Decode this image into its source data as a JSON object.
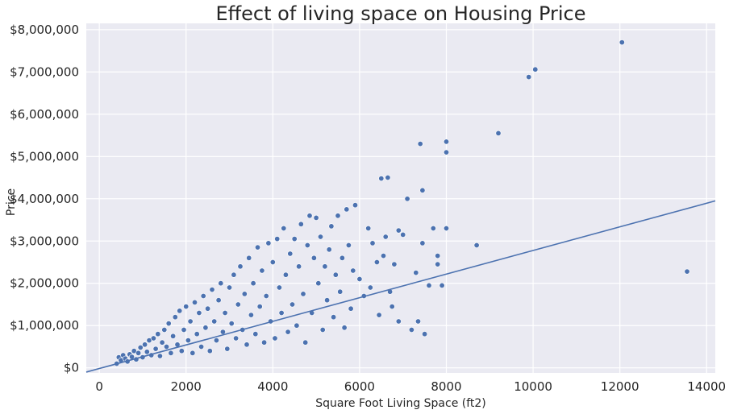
{
  "colors": {
    "plot_background": "#EAEAF2",
    "grid": "#FFFFFF",
    "marker": "#4C72B0",
    "marker_edge": "#FFFFFF",
    "regression_line": "#4C72B0"
  },
  "chart_data": {
    "type": "scatter",
    "title": "Effect of living space on Housing Price",
    "xlabel": "Square Foot Living Space (ft2)",
    "ylabel": "Price",
    "xlim": [
      -300,
      14200
    ],
    "ylim": [
      -120000,
      8150000
    ],
    "x_ticks": [
      0,
      2000,
      4000,
      6000,
      8000,
      10000,
      12000,
      14000
    ],
    "x_tick_labels": [
      "0",
      "2000",
      "4000",
      "6000",
      "8000",
      "10000",
      "12000",
      "14000"
    ],
    "y_ticks": [
      0,
      1000000,
      2000000,
      3000000,
      4000000,
      5000000,
      6000000,
      7000000,
      8000000
    ],
    "y_tick_labels": [
      "$0",
      "$1,000,000",
      "$2,000,000",
      "$3,000,000",
      "$4,000,000",
      "$5,000,000",
      "$6,000,000",
      "$7,000,000",
      "$8,000,000"
    ],
    "grid": true,
    "regression_line": {
      "x": [
        -300,
        14200
      ],
      "y": [
        -100000,
        3950000
      ]
    },
    "dense_cluster": {
      "description_points": "wedge-shaped dense cloud of points",
      "points": [
        [
          400,
          100000
        ],
        [
          450,
          250000
        ],
        [
          500,
          180000
        ],
        [
          550,
          300000
        ],
        [
          600,
          220000
        ],
        [
          650,
          150000
        ],
        [
          700,
          320000
        ],
        [
          750,
          260000
        ],
        [
          800,
          400000
        ],
        [
          850,
          200000
        ],
        [
          900,
          350000
        ],
        [
          950,
          480000
        ],
        [
          1000,
          250000
        ],
        [
          1050,
          550000
        ],
        [
          1100,
          380000
        ],
        [
          1150,
          650000
        ],
        [
          1200,
          300000
        ],
        [
          1250,
          700000
        ],
        [
          1300,
          450000
        ],
        [
          1350,
          800000
        ],
        [
          1400,
          280000
        ],
        [
          1450,
          600000
        ],
        [
          1500,
          900000
        ],
        [
          1550,
          500000
        ],
        [
          1600,
          1050000
        ],
        [
          1650,
          350000
        ],
        [
          1700,
          750000
        ],
        [
          1750,
          1200000
        ],
        [
          1800,
          550000
        ],
        [
          1850,
          1350000
        ],
        [
          1900,
          400000
        ],
        [
          1950,
          900000
        ],
        [
          2000,
          1450000
        ],
        [
          2050,
          650000
        ],
        [
          2100,
          1100000
        ],
        [
          2150,
          350000
        ],
        [
          2200,
          1550000
        ],
        [
          2250,
          800000
        ],
        [
          2300,
          1300000
        ],
        [
          2350,
          500000
        ],
        [
          2400,
          1700000
        ],
        [
          2450,
          950000
        ],
        [
          2500,
          1400000
        ],
        [
          2550,
          400000
        ],
        [
          2600,
          1850000
        ],
        [
          2650,
          1100000
        ],
        [
          2700,
          650000
        ],
        [
          2750,
          1600000
        ],
        [
          2800,
          2000000
        ],
        [
          2850,
          850000
        ],
        [
          2900,
          1300000
        ],
        [
          2950,
          450000
        ],
        [
          3000,
          1900000
        ],
        [
          3050,
          1050000
        ],
        [
          3100,
          2200000
        ],
        [
          3150,
          700000
        ],
        [
          3200,
          1500000
        ],
        [
          3250,
          2400000
        ],
        [
          3300,
          900000
        ],
        [
          3350,
          1750000
        ],
        [
          3400,
          550000
        ],
        [
          3450,
          2600000
        ],
        [
          3500,
          1250000
        ],
        [
          3550,
          2000000
        ],
        [
          3600,
          800000
        ],
        [
          3650,
          2850000
        ],
        [
          3700,
          1450000
        ],
        [
          3750,
          2300000
        ],
        [
          3800,
          600000
        ],
        [
          3850,
          1700000
        ],
        [
          3900,
          2950000
        ],
        [
          3950,
          1100000
        ],
        [
          4000,
          2500000
        ],
        [
          4050,
          700000
        ],
        [
          4100,
          3050000
        ],
        [
          4150,
          1900000
        ],
        [
          4200,
          1300000
        ],
        [
          4250,
          3300000
        ],
        [
          4300,
          2200000
        ],
        [
          4350,
          850000
        ],
        [
          4400,
          2700000
        ],
        [
          4450,
          1500000
        ],
        [
          4500,
          3050000
        ],
        [
          4550,
          1000000
        ],
        [
          4600,
          2400000
        ],
        [
          4650,
          3400000
        ],
        [
          4700,
          1750000
        ],
        [
          4750,
          600000
        ],
        [
          4800,
          2900000
        ],
        [
          4850,
          3600000
        ],
        [
          4900,
          1300000
        ],
        [
          4950,
          2600000
        ],
        [
          5000,
          3550000
        ],
        [
          5050,
          2000000
        ],
        [
          5100,
          3100000
        ],
        [
          5150,
          900000
        ],
        [
          5200,
          2400000
        ],
        [
          5250,
          1600000
        ],
        [
          5300,
          2800000
        ],
        [
          5350,
          3350000
        ],
        [
          5400,
          1200000
        ],
        [
          5450,
          2200000
        ],
        [
          5500,
          3600000
        ],
        [
          5550,
          1800000
        ],
        [
          5600,
          2600000
        ],
        [
          5650,
          950000
        ],
        [
          5700,
          3750000
        ],
        [
          5750,
          2900000
        ],
        [
          5800,
          1400000
        ],
        [
          5850,
          2300000
        ],
        [
          5900,
          3850000
        ],
        [
          6000,
          2100000
        ],
        [
          6100,
          1700000
        ],
        [
          6200,
          3300000
        ]
      ]
    },
    "outliers": [
      [
        6300,
        2950000
      ],
      [
        6400,
        2500000
      ],
      [
        6500,
        4480000
      ],
      [
        6600,
        3100000
      ],
      [
        6650,
        4500000
      ],
      [
        6700,
        1800000
      ],
      [
        6800,
        2450000
      ],
      [
        6900,
        3250000
      ],
      [
        7000,
        3150000
      ],
      [
        7100,
        4000000
      ],
      [
        7200,
        900000
      ],
      [
        7300,
        2250000
      ],
      [
        7350,
        1100000
      ],
      [
        7400,
        5300000
      ],
      [
        7450,
        4200000
      ],
      [
        7450,
        2950000
      ],
      [
        7500,
        800000
      ],
      [
        7700,
        3300000
      ],
      [
        7800,
        2650000
      ],
      [
        7800,
        2450000
      ],
      [
        7900,
        1950000
      ],
      [
        8000,
        5350000
      ],
      [
        8000,
        5100000
      ],
      [
        8000,
        3300000
      ],
      [
        8700,
        2900000
      ],
      [
        9200,
        5550000
      ],
      [
        9900,
        6880000
      ],
      [
        10050,
        7060000
      ],
      [
        12050,
        7700000
      ],
      [
        13550,
        2280000
      ],
      [
        6250,
        1900000
      ],
      [
        6450,
        1250000
      ],
      [
        6550,
        2650000
      ],
      [
        6750,
        1450000
      ],
      [
        6900,
        1100000
      ],
      [
        7600,
        1950000
      ]
    ]
  }
}
